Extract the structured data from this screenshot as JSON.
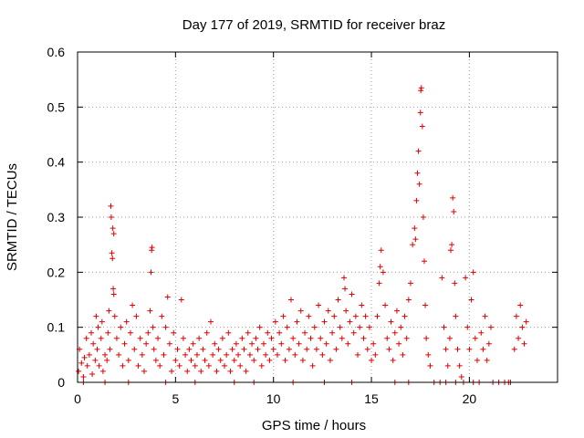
{
  "chart_data": {
    "type": "scatter",
    "title": "Day 177 of 2019, SRMTID for receiver braz",
    "xlabel": "GPS time / hours",
    "ylabel": "SRMTID / TECUs",
    "xlim": [
      0,
      24.5
    ],
    "ylim": [
      0,
      0.6
    ],
    "xticks": [
      0,
      5,
      10,
      15,
      20
    ],
    "xtick_labels": [
      "0",
      "5",
      "10",
      "15",
      "20"
    ],
    "yticks": [
      0,
      0.1,
      0.2,
      0.3,
      0.4,
      0.5,
      0.6
    ],
    "ytick_labels": [
      "0",
      "0.1",
      "0.2",
      "0.3",
      "0.4",
      "0.5",
      "0.6"
    ],
    "grid": true,
    "marker": "+",
    "color": "#e00000",
    "series": [
      {
        "name": "SRMTID",
        "points": [
          [
            0.05,
            0.02
          ],
          [
            0.1,
            0.06
          ],
          [
            0.2,
            0.035
          ],
          [
            0.3,
            0.01
          ],
          [
            0.35,
            0.045
          ],
          [
            0.45,
            0.08
          ],
          [
            0.5,
            0.03
          ],
          [
            0.6,
            0.05
          ],
          [
            0.7,
            0.09
          ],
          [
            0.75,
            0.015
          ],
          [
            0.8,
            0.07
          ],
          [
            0.9,
            0.04
          ],
          [
            0.95,
            0.12
          ],
          [
            1.0,
            0.06
          ],
          [
            1.05,
            0.1
          ],
          [
            1.1,
            0.03
          ],
          [
            1.2,
            0.08
          ],
          [
            1.25,
            0.11
          ],
          [
            1.3,
            0.02
          ],
          [
            1.4,
            0.05
          ],
          [
            1.5,
            0.04
          ],
          [
            1.55,
            0.09
          ],
          [
            1.6,
            0.13
          ],
          [
            1.65,
            0.06
          ],
          [
            1.7,
            0.32
          ],
          [
            1.72,
            0.3
          ],
          [
            1.75,
            0.235
          ],
          [
            1.78,
            0.225
          ],
          [
            1.8,
            0.28
          ],
          [
            1.82,
            0.17
          ],
          [
            1.85,
            0.16
          ],
          [
            1.9,
            0.12
          ],
          [
            2.0,
            0.08
          ],
          [
            2.1,
            0.05
          ],
          [
            2.2,
            0.1
          ],
          [
            2.3,
            0.03
          ],
          [
            2.4,
            0.07
          ],
          [
            2.5,
            0.11
          ],
          [
            2.6,
            0.04
          ],
          [
            2.7,
            0.09
          ],
          [
            2.8,
            0.14
          ],
          [
            2.9,
            0.06
          ],
          [
            3.0,
            0.12
          ],
          [
            3.1,
            0.03
          ],
          [
            3.2,
            0.08
          ],
          [
            3.3,
            0.05
          ],
          [
            3.4,
            0.02
          ],
          [
            3.5,
            0.07
          ],
          [
            3.6,
            0.09
          ],
          [
            3.7,
            0.13
          ],
          [
            3.75,
            0.2
          ],
          [
            3.78,
            0.24
          ],
          [
            3.8,
            0.245
          ],
          [
            3.85,
            0.1
          ],
          [
            3.9,
            0.06
          ],
          [
            4.0,
            0.04
          ],
          [
            4.1,
            0.08
          ],
          [
            4.2,
            0.03
          ],
          [
            4.3,
            0.12
          ],
          [
            4.4,
            0.05
          ],
          [
            4.5,
            0.1
          ],
          [
            4.6,
            0.155
          ],
          [
            4.7,
            0.07
          ],
          [
            4.8,
            0.02
          ],
          [
            4.9,
            0.09
          ],
          [
            5.0,
            0.04
          ],
          [
            5.1,
            0.06
          ],
          [
            5.2,
            0.03
          ],
          [
            5.3,
            0.15
          ],
          [
            5.4,
            0.08
          ],
          [
            5.5,
            0.05
          ],
          [
            5.6,
            0.02
          ],
          [
            5.7,
            0.06
          ],
          [
            5.8,
            0.04
          ],
          [
            5.9,
            0.07
          ],
          [
            6.0,
            0.03
          ],
          [
            6.1,
            0.05
          ],
          [
            6.2,
            0.08
          ],
          [
            6.3,
            0.02
          ],
          [
            6.4,
            0.06
          ],
          [
            6.5,
            0.04
          ],
          [
            6.6,
            0.09
          ],
          [
            6.7,
            0.03
          ],
          [
            6.8,
            0.11
          ],
          [
            6.9,
            0.05
          ],
          [
            7.0,
            0.07
          ],
          [
            7.1,
            0.02
          ],
          [
            7.2,
            0.06
          ],
          [
            7.3,
            0.04
          ],
          [
            7.4,
            0.08
          ],
          [
            7.5,
            0.03
          ],
          [
            7.6,
            0.05
          ],
          [
            7.7,
            0.09
          ],
          [
            7.8,
            0.02
          ],
          [
            7.9,
            0.06
          ],
          [
            8.0,
            0.04
          ],
          [
            8.1,
            0.07
          ],
          [
            8.2,
            0.05
          ],
          [
            8.3,
            0.03
          ],
          [
            8.4,
            0.08
          ],
          [
            8.5,
            0.06
          ],
          [
            8.6,
            0.02
          ],
          [
            8.7,
            0.09
          ],
          [
            8.8,
            0.05
          ],
          [
            8.9,
            0.07
          ],
          [
            9.0,
            0.04
          ],
          [
            9.1,
            0.08
          ],
          [
            9.2,
            0.06
          ],
          [
            9.3,
            0.1
          ],
          [
            9.4,
            0.03
          ],
          [
            9.5,
            0.07
          ],
          [
            9.6,
            0.05
          ],
          [
            9.7,
            0.09
          ],
          [
            9.8,
            0.04
          ],
          [
            9.9,
            0.08
          ],
          [
            10.0,
            0.06
          ],
          [
            10.1,
            0.11
          ],
          [
            10.2,
            0.05
          ],
          [
            10.3,
            0.09
          ],
          [
            10.4,
            0.07
          ],
          [
            10.5,
            0.12
          ],
          [
            10.6,
            0.04
          ],
          [
            10.7,
            0.1
          ],
          [
            10.8,
            0.06
          ],
          [
            10.9,
            0.15
          ],
          [
            11.0,
            0.08
          ],
          [
            11.1,
            0.05
          ],
          [
            11.2,
            0.11
          ],
          [
            11.3,
            0.07
          ],
          [
            11.4,
            0.13
          ],
          [
            11.5,
            0.04
          ],
          [
            11.6,
            0.09
          ],
          [
            11.7,
            0.06
          ],
          [
            11.8,
            0.12
          ],
          [
            11.9,
            0.08
          ],
          [
            12.0,
            0.03
          ],
          [
            12.1,
            0.1
          ],
          [
            12.2,
            0.06
          ],
          [
            12.3,
            0.14
          ],
          [
            12.4,
            0.08
          ],
          [
            12.5,
            0.05
          ],
          [
            12.6,
            0.11
          ],
          [
            12.7,
            0.07
          ],
          [
            12.8,
            0.13
          ],
          [
            12.9,
            0.04
          ],
          [
            13.0,
            0.09
          ],
          [
            13.1,
            0.12
          ],
          [
            13.2,
            0.06
          ],
          [
            13.3,
            0.15
          ],
          [
            13.4,
            0.1
          ],
          [
            13.5,
            0.08
          ],
          [
            13.6,
            0.19
          ],
          [
            13.7,
            0.13
          ],
          [
            13.8,
            0.07
          ],
          [
            13.9,
            0.11
          ],
          [
            14.0,
            0.16
          ],
          [
            14.1,
            0.09
          ],
          [
            14.2,
            0.12
          ],
          [
            14.3,
            0.05
          ],
          [
            14.4,
            0.1
          ],
          [
            14.5,
            0.14
          ],
          [
            14.6,
            0.08
          ],
          [
            14.7,
            0.12
          ],
          [
            14.8,
            0.06
          ],
          [
            14.9,
            0.1
          ],
          [
            15.0,
            0.04
          ],
          [
            15.1,
            0.07
          ],
          [
            15.2,
            0.05
          ],
          [
            15.3,
            0.12
          ],
          [
            15.4,
            0.18
          ],
          [
            15.5,
            0.24
          ],
          [
            15.6,
            0.2
          ],
          [
            15.7,
            0.14
          ],
          [
            15.8,
            0.08
          ],
          [
            15.9,
            0.06
          ],
          [
            16.0,
            0.11
          ],
          [
            16.1,
            0.04
          ],
          [
            16.2,
            0.09
          ],
          [
            16.3,
            0.13
          ],
          [
            16.4,
            0.07
          ],
          [
            16.5,
            0.1
          ],
          [
            16.6,
            0.05
          ],
          [
            16.7,
            0.12
          ],
          [
            16.8,
            0.08
          ],
          [
            16.9,
            0.15
          ],
          [
            17.0,
            0.18
          ],
          [
            17.1,
            0.25
          ],
          [
            17.2,
            0.28
          ],
          [
            17.3,
            0.33
          ],
          [
            17.35,
            0.38
          ],
          [
            17.4,
            0.42
          ],
          [
            17.45,
            0.36
          ],
          [
            17.5,
            0.49
          ],
          [
            17.52,
            0.53
          ],
          [
            17.55,
            0.535
          ],
          [
            17.6,
            0.465
          ],
          [
            17.65,
            0.3
          ],
          [
            17.7,
            0.22
          ],
          [
            17.75,
            0.14
          ],
          [
            17.8,
            0.08
          ],
          [
            17.9,
            0.05
          ],
          [
            18.0,
            0.03
          ],
          [
            18.2,
            0.0
          ],
          [
            18.5,
            0.0
          ],
          [
            18.6,
            0.19
          ],
          [
            18.7,
            0.1
          ],
          [
            18.8,
            0.06
          ],
          [
            18.9,
            0.03
          ],
          [
            19.0,
            0.08
          ],
          [
            19.05,
            0.24
          ],
          [
            19.1,
            0.25
          ],
          [
            19.15,
            0.335
          ],
          [
            19.2,
            0.31
          ],
          [
            19.25,
            0.18
          ],
          [
            19.3,
            0.12
          ],
          [
            19.4,
            0.06
          ],
          [
            19.5,
            0.03
          ],
          [
            19.6,
            0.01
          ],
          [
            19.7,
            0.0
          ],
          [
            19.8,
            0.19
          ],
          [
            19.9,
            0.1
          ],
          [
            20.0,
            0.06
          ],
          [
            20.1,
            0.15
          ],
          [
            20.2,
            0.2
          ],
          [
            20.3,
            0.08
          ],
          [
            20.4,
            0.04
          ],
          [
            20.5,
            0.0
          ],
          [
            20.6,
            0.09
          ],
          [
            20.7,
            0.06
          ],
          [
            20.8,
            0.12
          ],
          [
            20.9,
            0.04
          ],
          [
            21.0,
            0.07
          ],
          [
            21.1,
            0.1
          ],
          [
            21.2,
            0.0
          ],
          [
            21.5,
            0.0
          ],
          [
            21.8,
            0.0
          ],
          [
            22.1,
            0.0
          ],
          [
            22.3,
            0.06
          ],
          [
            22.4,
            0.12
          ],
          [
            22.5,
            0.08
          ],
          [
            22.6,
            0.14
          ],
          [
            22.7,
            0.1
          ],
          [
            22.8,
            0.07
          ],
          [
            22.9,
            0.11
          ],
          [
            0.3,
            0.0
          ],
          [
            1.4,
            0.0
          ],
          [
            2.6,
            0.0
          ],
          [
            4.5,
            0.0
          ],
          [
            6.0,
            0.0
          ],
          [
            8.0,
            0.0
          ],
          [
            9.0,
            0.0
          ],
          [
            11.0,
            0.0
          ],
          [
            12.6,
            0.0
          ],
          [
            14.0,
            0.0
          ],
          [
            16.2,
            0.0
          ],
          [
            16.9,
            0.0
          ],
          [
            18.8,
            0.0
          ],
          [
            19.3,
            0.0
          ],
          [
            20.2,
            0.0
          ],
          [
            22.0,
            0.0
          ],
          [
            1.85,
            0.27
          ],
          [
            13.65,
            0.17
          ],
          [
            15.45,
            0.21
          ],
          [
            17.25,
            0.26
          ]
        ]
      }
    ]
  }
}
